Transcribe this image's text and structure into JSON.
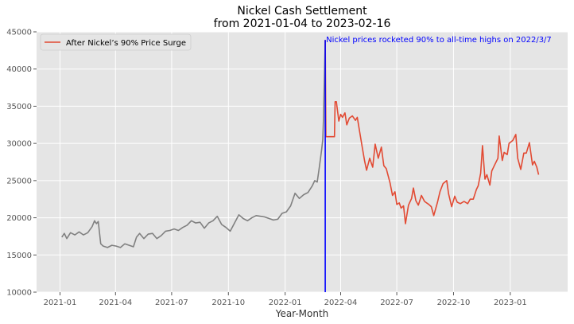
{
  "chart_data": {
    "type": "line",
    "title_line1": "Nickel Cash Settlement",
    "title_line2": "from 2021-01-04 to 2023-02-16",
    "xlabel": "Year-Month",
    "ylabel": "",
    "ylim": [
      10000,
      45000
    ],
    "y_ticks": [
      10000,
      15000,
      20000,
      25000,
      30000,
      35000,
      40000,
      45000
    ],
    "x_ticks": [
      "2021-01",
      "2021-04",
      "2021-07",
      "2021-10",
      "2022-01",
      "2022-04",
      "2022-07",
      "2022-10",
      "2023-01"
    ],
    "grid": true,
    "legend_position": "top-left",
    "legend": [
      "After Nickel’s 90% Price Surge"
    ],
    "annotation": {
      "text": "Nickel prices rocketed 90% to all-time highs on 2022/3/7",
      "date": "2022-03-07",
      "peak": 43900
    },
    "colors": {
      "background": "#e5e5e5",
      "before": "#808080",
      "after": "#e24a33",
      "annotation": "#0000ff"
    },
    "series": [
      {
        "role": "before",
        "color": "#808080",
        "points": [
          [
            "2021-01-04",
            17400
          ],
          [
            "2021-01-08",
            17900
          ],
          [
            "2021-01-12",
            17200
          ],
          [
            "2021-01-18",
            18000
          ],
          [
            "2021-01-25",
            17700
          ],
          [
            "2021-02-01",
            18100
          ],
          [
            "2021-02-08",
            17700
          ],
          [
            "2021-02-15",
            18000
          ],
          [
            "2021-02-22",
            18800
          ],
          [
            "2021-02-26",
            19600
          ],
          [
            "2021-03-01",
            19200
          ],
          [
            "2021-03-04",
            19500
          ],
          [
            "2021-03-08",
            16500
          ],
          [
            "2021-03-12",
            16200
          ],
          [
            "2021-03-19",
            16000
          ],
          [
            "2021-03-26",
            16300
          ],
          [
            "2021-04-02",
            16200
          ],
          [
            "2021-04-09",
            16000
          ],
          [
            "2021-04-16",
            16500
          ],
          [
            "2021-04-23",
            16300
          ],
          [
            "2021-04-30",
            16100
          ],
          [
            "2021-05-05",
            17400
          ],
          [
            "2021-05-10",
            17900
          ],
          [
            "2021-05-17",
            17200
          ],
          [
            "2021-05-24",
            17800
          ],
          [
            "2021-05-31",
            17900
          ],
          [
            "2021-06-07",
            17200
          ],
          [
            "2021-06-14",
            17600
          ],
          [
            "2021-06-21",
            18200
          ],
          [
            "2021-06-28",
            18300
          ],
          [
            "2021-07-05",
            18500
          ],
          [
            "2021-07-12",
            18300
          ],
          [
            "2021-07-19",
            18700
          ],
          [
            "2021-07-26",
            19000
          ],
          [
            "2021-08-02",
            19600
          ],
          [
            "2021-08-09",
            19300
          ],
          [
            "2021-08-16",
            19400
          ],
          [
            "2021-08-23",
            18600
          ],
          [
            "2021-08-30",
            19300
          ],
          [
            "2021-09-06",
            19600
          ],
          [
            "2021-09-13",
            20200
          ],
          [
            "2021-09-20",
            19100
          ],
          [
            "2021-09-27",
            18700
          ],
          [
            "2021-10-04",
            18200
          ],
          [
            "2021-10-11",
            19300
          ],
          [
            "2021-10-18",
            20400
          ],
          [
            "2021-10-25",
            19900
          ],
          [
            "2021-11-01",
            19600
          ],
          [
            "2021-11-08",
            20000
          ],
          [
            "2021-11-15",
            20300
          ],
          [
            "2021-11-22",
            20200
          ],
          [
            "2021-11-29",
            20100
          ],
          [
            "2021-12-06",
            19900
          ],
          [
            "2021-12-13",
            19700
          ],
          [
            "2021-12-20",
            19800
          ],
          [
            "2021-12-27",
            20600
          ],
          [
            "2022-01-03",
            20800
          ],
          [
            "2022-01-10",
            21600
          ],
          [
            "2022-01-17",
            23300
          ],
          [
            "2022-01-24",
            22600
          ],
          [
            "2022-01-31",
            23100
          ],
          [
            "2022-02-07",
            23400
          ],
          [
            "2022-02-14",
            24300
          ],
          [
            "2022-02-18",
            25000
          ],
          [
            "2022-02-22",
            24800
          ],
          [
            "2022-02-25",
            26500
          ],
          [
            "2022-03-01",
            29000
          ],
          [
            "2022-03-03",
            30500
          ],
          [
            "2022-03-04",
            33000
          ],
          [
            "2022-03-07",
            43900
          ]
        ]
      },
      {
        "role": "after",
        "name": "After Nickel’s 90% Price Surge",
        "color": "#e24a33",
        "points": [
          [
            "2022-03-07",
            43900
          ],
          [
            "2022-03-08",
            30900
          ],
          [
            "2022-03-15",
            30900
          ],
          [
            "2022-03-22",
            30900
          ],
          [
            "2022-03-23",
            35600
          ],
          [
            "2022-03-25",
            35600
          ],
          [
            "2022-03-29",
            33000
          ],
          [
            "2022-04-01",
            33900
          ],
          [
            "2022-04-04",
            33500
          ],
          [
            "2022-04-08",
            34100
          ],
          [
            "2022-04-11",
            32500
          ],
          [
            "2022-04-15",
            33400
          ],
          [
            "2022-04-20",
            33700
          ],
          [
            "2022-04-25",
            33100
          ],
          [
            "2022-04-28",
            33500
          ],
          [
            "2022-05-02",
            31500
          ],
          [
            "2022-05-06",
            29500
          ],
          [
            "2022-05-10",
            27600
          ],
          [
            "2022-05-13",
            26400
          ],
          [
            "2022-05-18",
            28000
          ],
          [
            "2022-05-23",
            26800
          ],
          [
            "2022-05-27",
            29900
          ],
          [
            "2022-06-01",
            28000
          ],
          [
            "2022-06-06",
            29500
          ],
          [
            "2022-06-10",
            27000
          ],
          [
            "2022-06-14",
            26600
          ],
          [
            "2022-06-20",
            24700
          ],
          [
            "2022-06-24",
            23000
          ],
          [
            "2022-06-28",
            23500
          ],
          [
            "2022-07-01",
            21800
          ],
          [
            "2022-07-05",
            22000
          ],
          [
            "2022-07-08",
            21300
          ],
          [
            "2022-07-12",
            21600
          ],
          [
            "2022-07-15",
            19200
          ],
          [
            "2022-07-20",
            21700
          ],
          [
            "2022-07-25",
            22600
          ],
          [
            "2022-07-28",
            24000
          ],
          [
            "2022-08-01",
            22300
          ],
          [
            "2022-08-05",
            21700
          ],
          [
            "2022-08-10",
            23000
          ],
          [
            "2022-08-15",
            22200
          ],
          [
            "2022-08-22",
            21800
          ],
          [
            "2022-08-26",
            21500
          ],
          [
            "2022-08-30",
            20300
          ],
          [
            "2022-09-05",
            22100
          ],
          [
            "2022-09-09",
            23500
          ],
          [
            "2022-09-14",
            24600
          ],
          [
            "2022-09-20",
            25000
          ],
          [
            "2022-09-23",
            23200
          ],
          [
            "2022-09-28",
            21500
          ],
          [
            "2022-10-03",
            22900
          ],
          [
            "2022-10-07",
            22100
          ],
          [
            "2022-10-12",
            21900
          ],
          [
            "2022-10-18",
            22200
          ],
          [
            "2022-10-24",
            21900
          ],
          [
            "2022-10-28",
            22500
          ],
          [
            "2022-11-02",
            22500
          ],
          [
            "2022-11-07",
            23800
          ],
          [
            "2022-11-10",
            24300
          ],
          [
            "2022-11-14",
            26000
          ],
          [
            "2022-11-17",
            29700
          ],
          [
            "2022-11-21",
            25200
          ],
          [
            "2022-11-24",
            25800
          ],
          [
            "2022-11-29",
            24400
          ],
          [
            "2022-12-02",
            26300
          ],
          [
            "2022-12-06",
            27000
          ],
          [
            "2022-12-12",
            28000
          ],
          [
            "2022-12-14",
            31000
          ],
          [
            "2022-12-19",
            27700
          ],
          [
            "2022-12-22",
            28800
          ],
          [
            "2022-12-27",
            28500
          ],
          [
            "2022-12-30",
            30000
          ],
          [
            "2023-01-05",
            30400
          ],
          [
            "2023-01-10",
            31200
          ],
          [
            "2023-01-13",
            28000
          ],
          [
            "2023-01-18",
            26500
          ],
          [
            "2023-01-23",
            28700
          ],
          [
            "2023-01-27",
            28700
          ],
          [
            "2023-02-01",
            30100
          ],
          [
            "2023-02-06",
            27100
          ],
          [
            "2023-02-09",
            27600
          ],
          [
            "2023-02-13",
            26800
          ],
          [
            "2023-02-16",
            25800
          ]
        ]
      }
    ]
  }
}
